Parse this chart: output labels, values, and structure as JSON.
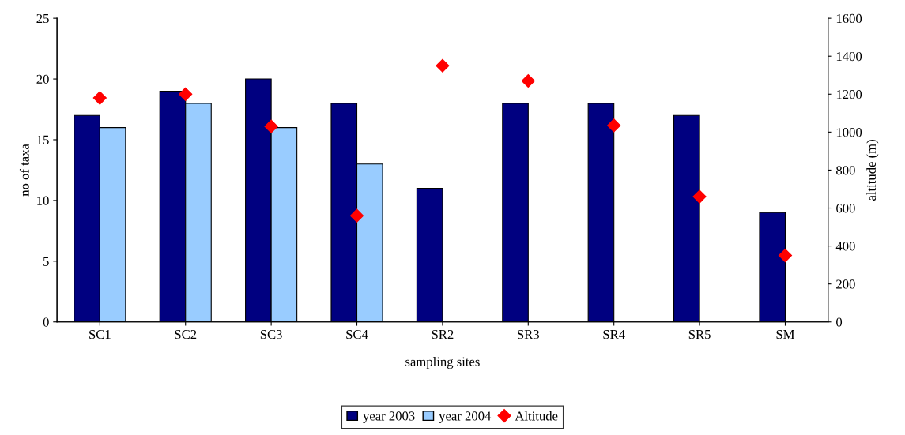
{
  "chart_data": {
    "type": "bar",
    "xlabel": "sampling sites",
    "ylabel": "no of taxa",
    "y2label": "altitude (m)",
    "categories": [
      "SC1",
      "SC2",
      "SC3",
      "SC4",
      "SR2",
      "SR3",
      "SR4",
      "SR5",
      "SM"
    ],
    "series": [
      {
        "name": "year 2003",
        "color": "#000080",
        "values": [
          17,
          19,
          20,
          18,
          11,
          18,
          18,
          17,
          9
        ]
      },
      {
        "name": "year 2004",
        "color": "#99ccff",
        "values": [
          16,
          18,
          16,
          13,
          null,
          null,
          null,
          null,
          null
        ]
      },
      {
        "name": "Altitude",
        "type": "scatter",
        "axis": "y2",
        "marker": "diamond",
        "color": "#ff0000",
        "values": [
          1180,
          1200,
          1030,
          560,
          1350,
          1270,
          1035,
          660,
          350
        ]
      }
    ],
    "ylim": [
      0,
      25
    ],
    "yticks": [
      0,
      5,
      10,
      15,
      20,
      25
    ],
    "y2lim": [
      0,
      1600
    ],
    "y2ticks": [
      0,
      200,
      400,
      600,
      800,
      1000,
      1200,
      1400,
      1600
    ],
    "grid": false,
    "legend": "bottom"
  }
}
